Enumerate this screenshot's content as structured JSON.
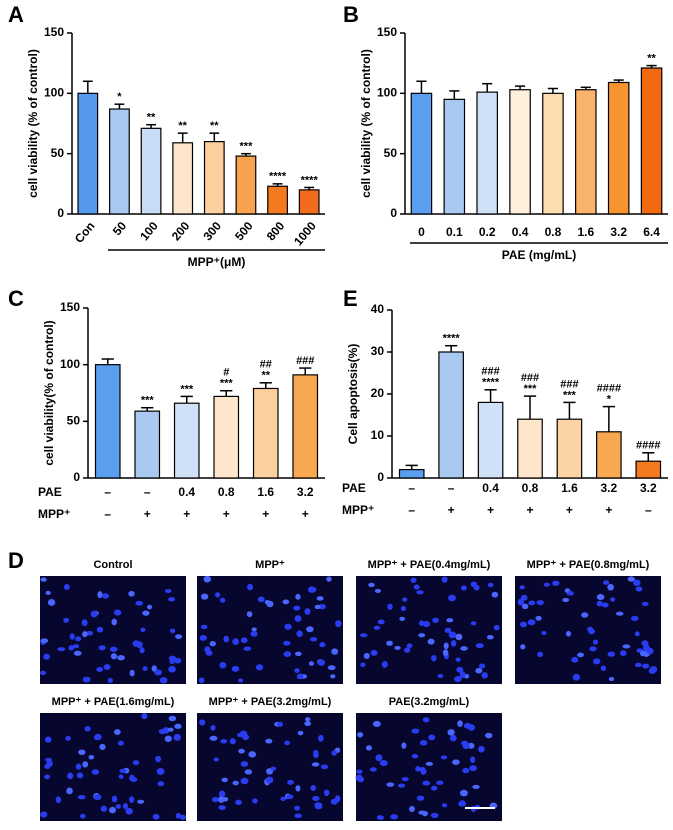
{
  "chart_data": [
    {
      "type": "bar",
      "label": "A",
      "ylabel": "cell viability (% of control)",
      "xlabel": "MPP⁺(μM)",
      "categories": [
        "Con",
        "50",
        "100",
        "200",
        "300",
        "500",
        "800",
        "1000"
      ],
      "values": [
        100,
        87,
        71,
        59,
        60,
        48,
        23,
        20
      ],
      "errors": [
        10,
        4,
        3,
        8,
        7,
        2,
        2,
        2
      ],
      "stars": [
        null,
        "*",
        "**",
        "**",
        "**",
        "***",
        "****",
        "****"
      ],
      "colors": [
        "#5599ee",
        "#a9c9f0",
        "#c8dcf5",
        "#fde6cc",
        "#fccf9f",
        "#f9a24e",
        "#f47a20",
        "#f26a1b"
      ],
      "ylim": [
        0,
        150
      ],
      "yticks": [
        0,
        50,
        100,
        150
      ]
    },
    {
      "type": "bar",
      "label": "B",
      "ylabel": "cell viability (% of control)",
      "xlabel": "PAE (mg/mL)",
      "categories": [
        "0",
        "0.1",
        "0.2",
        "0.4",
        "0.8",
        "1.6",
        "3.2",
        "6.4"
      ],
      "values": [
        100,
        95,
        101,
        103,
        100,
        103,
        109,
        121
      ],
      "errors": [
        10,
        7,
        7,
        3,
        4,
        2,
        2,
        2
      ],
      "stars": [
        null,
        null,
        null,
        null,
        null,
        null,
        null,
        "**"
      ],
      "colors": [
        "#5b9ef0",
        "#a9c9f0",
        "#cfe0f7",
        "#fff0dd",
        "#fddcb0",
        "#f9b36a",
        "#f79430",
        "#f26a10"
      ],
      "ylim": [
        0,
        150
      ],
      "yticks": [
        0,
        50,
        100,
        150
      ]
    },
    {
      "type": "bar",
      "label": "C",
      "ylabel": "cell viability(% of control)",
      "rows": [
        {
          "name": "PAE",
          "labels": [
            "–",
            "–",
            "0.4",
            "0.8",
            "1.6",
            "3.2"
          ]
        },
        {
          "name": "MPP⁺",
          "labels": [
            "–",
            "+",
            "+",
            "+",
            "+",
            "+"
          ]
        }
      ],
      "values": [
        100,
        59,
        66,
        72,
        79,
        91
      ],
      "errors": [
        5,
        3,
        6,
        5,
        5,
        6
      ],
      "stars": [
        null,
        "***",
        "***",
        "***",
        "**",
        null
      ],
      "hashes": [
        null,
        null,
        null,
        "#",
        "##",
        "###"
      ],
      "colors": [
        "#5b9ef0",
        "#a9c9f0",
        "#cfe0f7",
        "#fde6cc",
        "#fccf9f",
        "#f8a850"
      ],
      "ylim": [
        0,
        150
      ],
      "yticks": [
        0,
        50,
        100,
        150
      ]
    },
    {
      "type": "bar",
      "label": "E",
      "ylabel": "Cell apoptosis(%)",
      "rows": [
        {
          "name": "PAE",
          "labels": [
            "–",
            "–",
            "0.4",
            "0.8",
            "1.6",
            "3.2",
            "3.2"
          ]
        },
        {
          "name": "MPP⁺",
          "labels": [
            "–",
            "+",
            "+",
            "+",
            "+",
            "+",
            "–"
          ]
        }
      ],
      "values": [
        2,
        30,
        18,
        14,
        14,
        11,
        4
      ],
      "errors": [
        1,
        1.5,
        3,
        5.5,
        4,
        6,
        2
      ],
      "stars": [
        null,
        "****",
        "****",
        "***",
        "***",
        "*",
        null
      ],
      "hashes": [
        null,
        null,
        "###",
        "###",
        "###",
        "####",
        "####"
      ],
      "colors": [
        "#5b9ef0",
        "#a9c9f0",
        "#cfe0f7",
        "#fde6cc",
        "#fcd3a5",
        "#f8a850",
        "#f47a20"
      ],
      "ylim": [
        0,
        40
      ],
      "yticks": [
        0,
        10,
        20,
        30,
        40
      ]
    }
  ],
  "image_panel": {
    "label": "D",
    "titles": [
      "Control",
      "MPP⁺",
      "MPP⁺ + PAE(0.4mg/mL)",
      "MPP⁺ + PAE(0.8mg/mL)",
      "MPP⁺ + PAE(1.6mg/mL)",
      "MPP⁺ + PAE(3.2mg/mL)",
      "PAE(3.2mg/mL)"
    ]
  }
}
